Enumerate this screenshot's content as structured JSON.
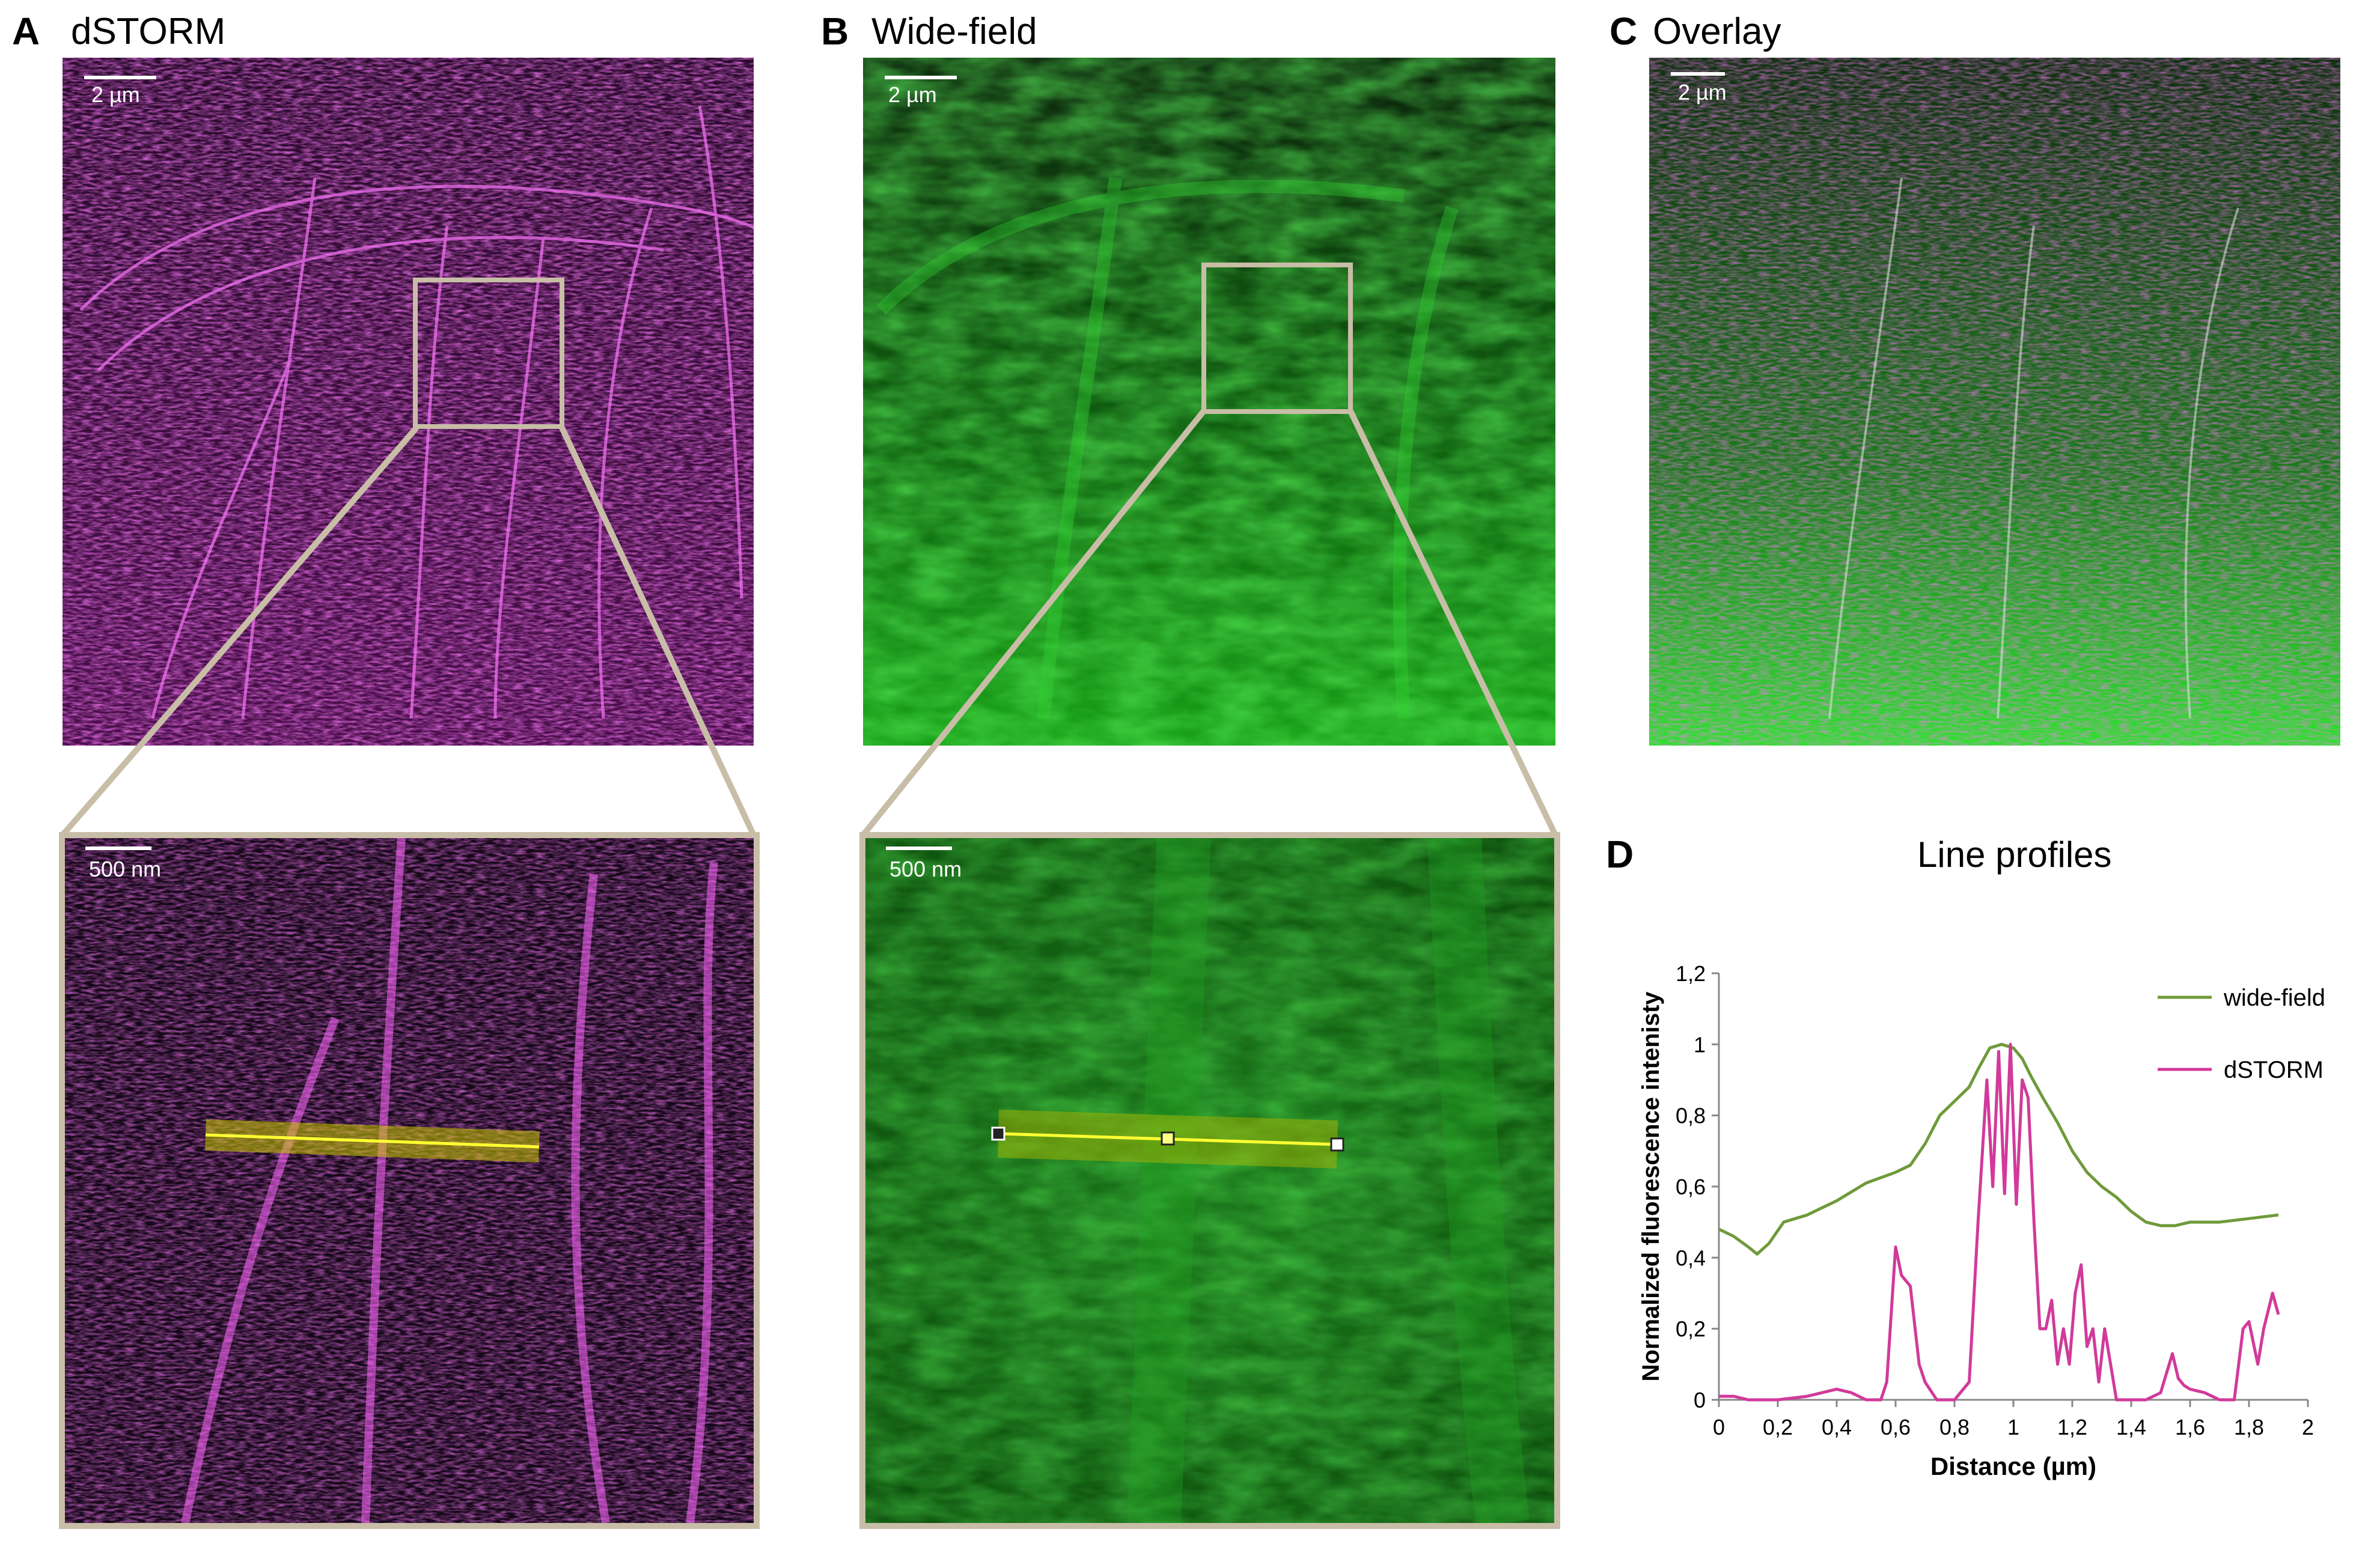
{
  "panels": {
    "a": {
      "letter": "A",
      "title": "dSTORM",
      "scale": "2 µm",
      "zoom_scale": "500 nm"
    },
    "b": {
      "letter": "B",
      "title": "Wide-field",
      "scale": "2 µm",
      "zoom_scale": "500 nm"
    },
    "c": {
      "letter": "C",
      "title": "Overlay",
      "scale": "2 µm"
    },
    "d": {
      "letter": "D"
    }
  },
  "colors": {
    "dstorm": "#d400c8",
    "widefield": "#1fbf1f",
    "frame": "#c8bda7",
    "line_widefield": "#6f9a3a",
    "line_dstorm": "#d13a9a",
    "roi_line": "#ffff33"
  },
  "chart_data": {
    "type": "line",
    "title": "Line profiles",
    "xlabel": "Distance (µm)",
    "ylabel": "Normalized fluorescence intenisty",
    "xlim": [
      0,
      2
    ],
    "ylim": [
      0,
      1.2
    ],
    "xticks": [
      "0",
      "0,2",
      "0,4",
      "0,6",
      "0,8",
      "1",
      "1,2",
      "1,4",
      "1,6",
      "1,8",
      "2"
    ],
    "yticks": [
      "0",
      "0,2",
      "0,4",
      "0,6",
      "0,8",
      "1",
      "1,2"
    ],
    "legend_position": "top-right",
    "series": [
      {
        "name": "wide-field",
        "x": [
          0,
          0.05,
          0.1,
          0.13,
          0.17,
          0.22,
          0.3,
          0.4,
          0.5,
          0.6,
          0.65,
          0.7,
          0.75,
          0.8,
          0.85,
          0.88,
          0.92,
          0.96,
          1.0,
          1.03,
          1.06,
          1.1,
          1.15,
          1.2,
          1.25,
          1.3,
          1.35,
          1.4,
          1.45,
          1.5,
          1.55,
          1.6,
          1.7,
          1.8,
          1.9
        ],
        "values": [
          0.48,
          0.46,
          0.43,
          0.41,
          0.44,
          0.5,
          0.52,
          0.56,
          0.61,
          0.64,
          0.66,
          0.72,
          0.8,
          0.84,
          0.88,
          0.93,
          0.99,
          1.0,
          0.99,
          0.96,
          0.91,
          0.85,
          0.78,
          0.7,
          0.64,
          0.6,
          0.57,
          0.53,
          0.5,
          0.49,
          0.49,
          0.5,
          0.5,
          0.51,
          0.52
        ]
      },
      {
        "name": "dSTORM",
        "x": [
          0,
          0.05,
          0.1,
          0.15,
          0.2,
          0.3,
          0.4,
          0.45,
          0.5,
          0.55,
          0.57,
          0.6,
          0.62,
          0.65,
          0.68,
          0.7,
          0.74,
          0.8,
          0.85,
          0.88,
          0.91,
          0.93,
          0.95,
          0.97,
          0.99,
          1.01,
          1.03,
          1.05,
          1.07,
          1.09,
          1.11,
          1.13,
          1.15,
          1.17,
          1.19,
          1.21,
          1.23,
          1.25,
          1.27,
          1.29,
          1.31,
          1.35,
          1.4,
          1.45,
          1.5,
          1.54,
          1.56,
          1.58,
          1.6,
          1.65,
          1.7,
          1.75,
          1.78,
          1.8,
          1.83,
          1.85,
          1.88,
          1.9
        ],
        "values": [
          0.01,
          0.01,
          0.0,
          0.0,
          0.0,
          0.01,
          0.03,
          0.02,
          0.0,
          0.0,
          0.05,
          0.43,
          0.35,
          0.32,
          0.1,
          0.05,
          0.0,
          0.0,
          0.05,
          0.5,
          0.9,
          0.6,
          0.98,
          0.58,
          1.0,
          0.55,
          0.9,
          0.85,
          0.5,
          0.2,
          0.2,
          0.28,
          0.1,
          0.2,
          0.1,
          0.3,
          0.38,
          0.15,
          0.2,
          0.05,
          0.2,
          0.0,
          0.0,
          0.0,
          0.02,
          0.13,
          0.06,
          0.04,
          0.03,
          0.02,
          0.0,
          0.0,
          0.2,
          0.22,
          0.1,
          0.2,
          0.3,
          0.24
        ]
      }
    ]
  }
}
